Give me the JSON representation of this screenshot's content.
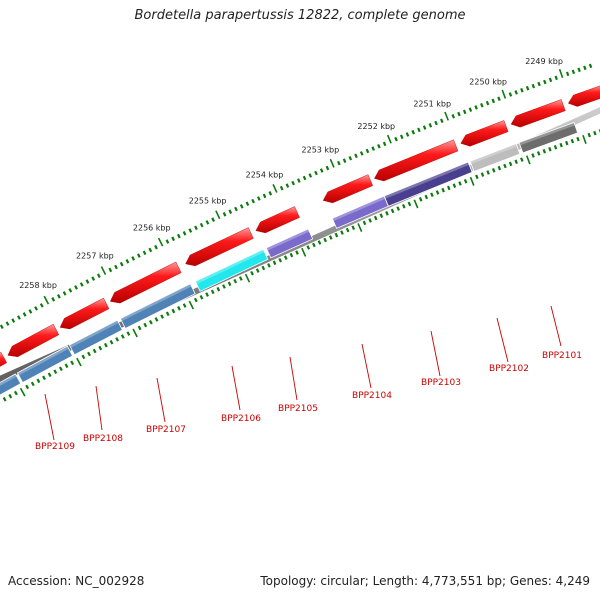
{
  "title": "Bordetella parapertussis 12822, complete genome",
  "footer": {
    "accession": "Accession: NC_002928",
    "summary": "Topology: circular; Length: 4,773,551 bp; Genes: 4,249"
  },
  "colors": {
    "backbone": "#8a8a8a",
    "tick": "#0d7a0d",
    "cds": "#ff1a1a",
    "gene_label": "#cc0000"
  },
  "scale_labels": [
    "2258 kbp",
    "2257 kbp",
    "2256 kbp",
    "2255 kbp",
    "2254 kbp",
    "2253 kbp",
    "2252 kbp",
    "2251 kbp",
    "2250 kbp",
    "2249 kbp"
  ],
  "genes": [
    {
      "id": "BPP2109",
      "color": "#4f82b6"
    },
    {
      "id": "BPP2108",
      "color": "#4f82b6"
    },
    {
      "id": "BPP2107",
      "color": "#4f82b6"
    },
    {
      "id": "BPP2106",
      "color": "#22e8ee"
    },
    {
      "id": "BPP2105",
      "color": "#7a6acc"
    },
    {
      "id": "BPP2104",
      "color": "#7a6acc"
    },
    {
      "id": "BPP2103",
      "color": "#4a3f8f"
    },
    {
      "id": "BPP2102",
      "color": "#bdbdbd"
    },
    {
      "id": "BPP2101",
      "color": "#6d6d6d"
    }
  ]
}
